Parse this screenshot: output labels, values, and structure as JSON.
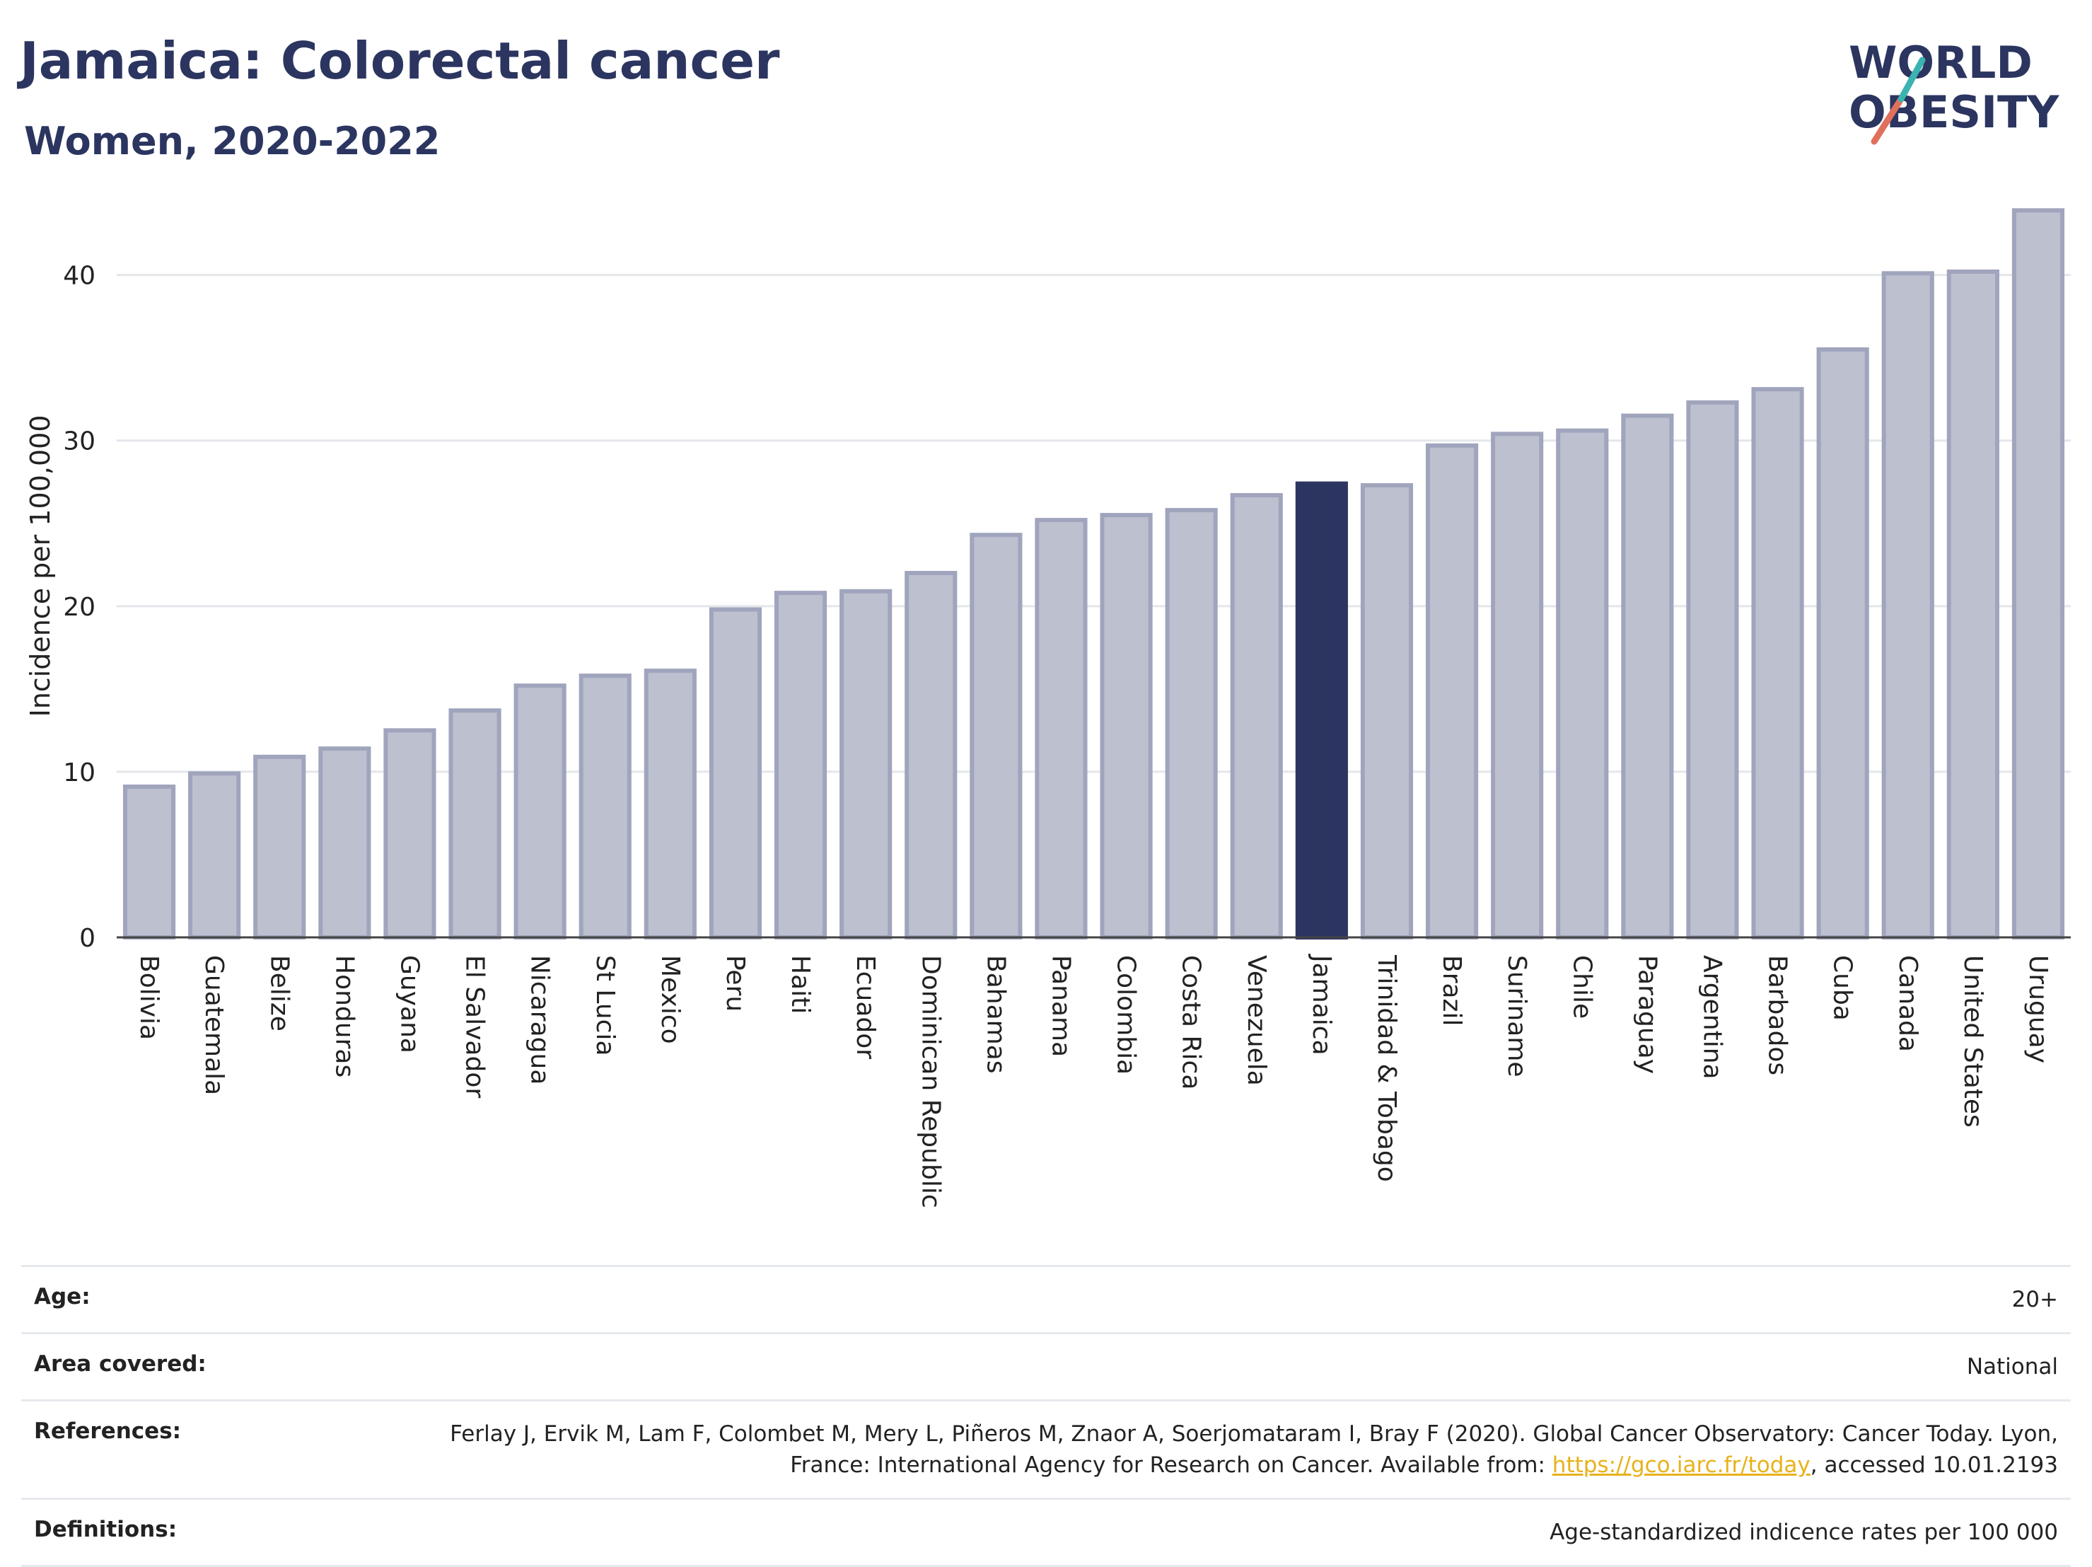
{
  "header": {
    "title": "Jamaica: Colorectal cancer",
    "subtitle": "Women, 2020-2022",
    "logo_text": "WORLD OBESITY"
  },
  "colors": {
    "bar": "#bcc0cf",
    "bar_edge": "#a0a5bd",
    "highlight": "#2b3560",
    "grid": "#e4e6ea"
  },
  "chart_data": {
    "type": "bar",
    "title": "Jamaica: Colorectal cancer",
    "subtitle": "Women, 2020-2022",
    "xlabel": "",
    "ylabel": "Incidence per 100,000",
    "ylim": [
      0,
      44
    ],
    "yticks": [
      0,
      10,
      20,
      30,
      40
    ],
    "grid": true,
    "highlight": "Jamaica",
    "categories": [
      "Bolivia",
      "Guatemala",
      "Belize",
      "Honduras",
      "Guyana",
      "El Salvador",
      "Nicaragua",
      "St Lucia",
      "Mexico",
      "Peru",
      "Haiti",
      "Ecuador",
      "Dominican Republic",
      "Bahamas",
      "Panama",
      "Colombia",
      "Costa Rica",
      "Venezuela",
      "Jamaica",
      "Trinidad & Tobago",
      "Brazil",
      "Suriname",
      "Chile",
      "Paraguay",
      "Argentina",
      "Barbados",
      "Cuba",
      "Canada",
      "United States",
      "Uruguay"
    ],
    "values": [
      9.1,
      9.9,
      10.9,
      11.4,
      12.5,
      13.7,
      15.2,
      15.8,
      16.1,
      19.8,
      20.8,
      20.9,
      22.0,
      24.3,
      25.2,
      25.5,
      25.8,
      26.7,
      27.4,
      27.3,
      29.7,
      30.4,
      30.6,
      31.5,
      32.3,
      33.1,
      35.5,
      40.1,
      40.2,
      43.9
    ]
  },
  "meta": {
    "age_label": "Age:",
    "age_value": "20+",
    "area_label": "Area covered:",
    "area_value": "National",
    "references_label": "References:",
    "references_text": "Ferlay J, Ervik M, Lam F, Colombet M, Mery L, Piñeros M, Znaor A, Soerjomataram I, Bray F (2020). Global Cancer Observatory: Cancer Today. Lyon, France: International Agency for Research on Cancer. Available from: ",
    "references_link": "https://gco.iarc.fr/today",
    "references_tail": ", accessed 10.01.2193",
    "definitions_label": "Definitions:",
    "definitions_value": "Age-standardized indicence rates per 100 000"
  }
}
